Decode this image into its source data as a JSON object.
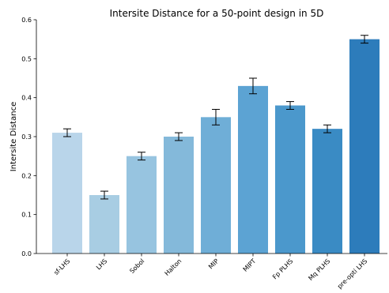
{
  "chart_data": {
    "type": "bar",
    "title": "Intersite Distance for a 50-point design in 5D",
    "xlabel": "",
    "ylabel": "Intersite Distance",
    "ylim": [
      0,
      0.6
    ],
    "yticks": [
      0.0,
      0.1,
      0.2,
      0.3,
      0.4,
      0.5,
      0.6
    ],
    "ytick_labels": [
      "0.0",
      "0.1",
      "0.2",
      "0.3",
      "0.4",
      "0.5",
      "0.6"
    ],
    "categories": [
      "sf-LHS",
      "LHS",
      "Sobol",
      "Halton",
      "MIP",
      "MIPT",
      "Fp PLHS",
      "Mq PLHS",
      "pre-opti LHS"
    ],
    "values": [
      0.31,
      0.15,
      0.25,
      0.3,
      0.35,
      0.43,
      0.38,
      0.32,
      0.55
    ],
    "errors": [
      0.01,
      0.01,
      0.01,
      0.01,
      0.02,
      0.02,
      0.01,
      0.01,
      0.01
    ],
    "colors": [
      "#b9d5ea",
      "#a8cde3",
      "#97c4e0",
      "#84b9da",
      "#6faed7",
      "#5ca3d3",
      "#4b98cc",
      "#3a8bc4",
      "#2d7cbb"
    ],
    "grid": false,
    "legend": "none"
  }
}
